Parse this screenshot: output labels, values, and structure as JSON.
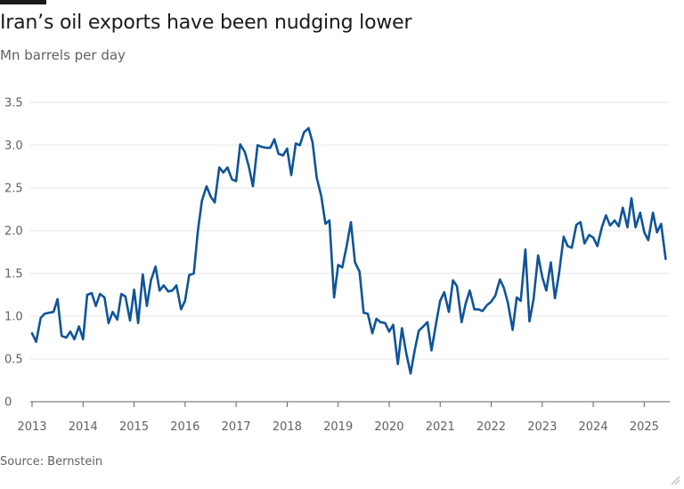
{
  "header": {
    "title": "Iran’s oil exports have been nudging lower",
    "subtitle": "Mn barrels per day"
  },
  "footer": {
    "source": "Source: Bernstein"
  },
  "colors": {
    "line": "#0f5499",
    "grid": "#e6e6e6",
    "axis": "#66605c",
    "text": "#66605c"
  },
  "chart_data": {
    "type": "line",
    "title": "Iran’s oil exports have been nudging lower",
    "subtitle": "Mn barrels per day",
    "xlabel": "",
    "ylabel": "",
    "xlim": [
      2013,
      2025.5
    ],
    "ylim": [
      0,
      3.5
    ],
    "yticks": [
      "0",
      "0.5",
      "1.0",
      "1.5",
      "2.0",
      "2.5",
      "3.0",
      "3.5"
    ],
    "xticks": [
      "2013",
      "2014",
      "2015",
      "2016",
      "2017",
      "2018",
      "2019",
      "2020",
      "2021",
      "2022",
      "2023",
      "2024",
      "2025"
    ],
    "grid": true,
    "series": [
      {
        "points": [
          [
            2013.0,
            0.8
          ],
          [
            2013.08,
            0.7
          ],
          [
            2013.17,
            0.98
          ],
          [
            2013.25,
            1.03
          ],
          [
            2013.33,
            1.04
          ],
          [
            2013.42,
            1.05
          ],
          [
            2013.5,
            1.2
          ],
          [
            2013.58,
            0.77
          ],
          [
            2013.67,
            0.75
          ],
          [
            2013.75,
            0.82
          ],
          [
            2013.83,
            0.73
          ],
          [
            2013.92,
            0.88
          ],
          [
            2014.0,
            0.73
          ],
          [
            2014.08,
            1.25
          ],
          [
            2014.17,
            1.27
          ],
          [
            2014.25,
            1.12
          ],
          [
            2014.33,
            1.26
          ],
          [
            2014.42,
            1.22
          ],
          [
            2014.5,
            0.92
          ],
          [
            2014.58,
            1.05
          ],
          [
            2014.67,
            0.96
          ],
          [
            2014.75,
            1.26
          ],
          [
            2014.83,
            1.23
          ],
          [
            2014.92,
            0.95
          ],
          [
            2015.0,
            1.31
          ],
          [
            2015.08,
            0.92
          ],
          [
            2015.17,
            1.49
          ],
          [
            2015.25,
            1.12
          ],
          [
            2015.33,
            1.42
          ],
          [
            2015.42,
            1.58
          ],
          [
            2015.5,
            1.3
          ],
          [
            2015.58,
            1.36
          ],
          [
            2015.67,
            1.29
          ],
          [
            2015.75,
            1.3
          ],
          [
            2015.83,
            1.36
          ],
          [
            2015.92,
            1.08
          ],
          [
            2016.0,
            1.18
          ],
          [
            2016.08,
            1.48
          ],
          [
            2016.17,
            1.5
          ],
          [
            2016.25,
            2.0
          ],
          [
            2016.33,
            2.35
          ],
          [
            2016.42,
            2.52
          ],
          [
            2016.5,
            2.4
          ],
          [
            2016.58,
            2.33
          ],
          [
            2016.67,
            2.74
          ],
          [
            2016.75,
            2.68
          ],
          [
            2016.83,
            2.74
          ],
          [
            2016.92,
            2.6
          ],
          [
            2017.0,
            2.58
          ],
          [
            2017.08,
            3.01
          ],
          [
            2017.17,
            2.92
          ],
          [
            2017.25,
            2.75
          ],
          [
            2017.33,
            2.52
          ],
          [
            2017.42,
            3.0
          ],
          [
            2017.5,
            2.98
          ],
          [
            2017.58,
            2.97
          ],
          [
            2017.67,
            2.97
          ],
          [
            2017.75,
            3.07
          ],
          [
            2017.83,
            2.9
          ],
          [
            2017.92,
            2.88
          ],
          [
            2018.0,
            2.96
          ],
          [
            2018.08,
            2.65
          ],
          [
            2018.17,
            3.02
          ],
          [
            2018.25,
            3.0
          ],
          [
            2018.33,
            3.15
          ],
          [
            2018.42,
            3.2
          ],
          [
            2018.5,
            3.03
          ],
          [
            2018.58,
            2.62
          ],
          [
            2018.67,
            2.4
          ],
          [
            2018.75,
            2.08
          ],
          [
            2018.83,
            2.12
          ],
          [
            2018.92,
            1.22
          ],
          [
            2019.0,
            1.6
          ],
          [
            2019.08,
            1.57
          ],
          [
            2019.17,
            1.83
          ],
          [
            2019.25,
            2.1
          ],
          [
            2019.33,
            1.63
          ],
          [
            2019.42,
            1.52
          ],
          [
            2019.5,
            1.04
          ],
          [
            2019.58,
            1.03
          ],
          [
            2019.67,
            0.8
          ],
          [
            2019.75,
            0.97
          ],
          [
            2019.83,
            0.93
          ],
          [
            2019.92,
            0.92
          ],
          [
            2020.0,
            0.82
          ],
          [
            2020.08,
            0.9
          ],
          [
            2020.17,
            0.44
          ],
          [
            2020.25,
            0.86
          ],
          [
            2020.33,
            0.58
          ],
          [
            2020.42,
            0.33
          ],
          [
            2020.5,
            0.6
          ],
          [
            2020.58,
            0.83
          ],
          [
            2020.67,
            0.88
          ],
          [
            2020.75,
            0.93
          ],
          [
            2020.83,
            0.6
          ],
          [
            2020.92,
            0.92
          ],
          [
            2021.0,
            1.18
          ],
          [
            2021.08,
            1.28
          ],
          [
            2021.17,
            1.05
          ],
          [
            2021.25,
            1.42
          ],
          [
            2021.33,
            1.35
          ],
          [
            2021.42,
            0.93
          ],
          [
            2021.5,
            1.15
          ],
          [
            2021.58,
            1.3
          ],
          [
            2021.67,
            1.08
          ],
          [
            2021.75,
            1.08
          ],
          [
            2021.83,
            1.06
          ],
          [
            2021.92,
            1.13
          ],
          [
            2022.0,
            1.17
          ],
          [
            2022.08,
            1.24
          ],
          [
            2022.17,
            1.43
          ],
          [
            2022.25,
            1.33
          ],
          [
            2022.33,
            1.15
          ],
          [
            2022.42,
            0.84
          ],
          [
            2022.5,
            1.22
          ],
          [
            2022.58,
            1.18
          ],
          [
            2022.67,
            1.78
          ],
          [
            2022.75,
            0.94
          ],
          [
            2022.83,
            1.2
          ],
          [
            2022.92,
            1.71
          ],
          [
            2023.0,
            1.46
          ],
          [
            2023.08,
            1.3
          ],
          [
            2023.17,
            1.63
          ],
          [
            2023.25,
            1.21
          ],
          [
            2023.33,
            1.5
          ],
          [
            2023.42,
            1.93
          ],
          [
            2023.5,
            1.82
          ],
          [
            2023.58,
            1.8
          ],
          [
            2023.67,
            2.07
          ],
          [
            2023.75,
            2.1
          ],
          [
            2023.83,
            1.85
          ],
          [
            2023.92,
            1.95
          ],
          [
            2024.0,
            1.92
          ],
          [
            2024.08,
            1.82
          ],
          [
            2024.17,
            2.04
          ],
          [
            2024.25,
            2.18
          ],
          [
            2024.33,
            2.06
          ],
          [
            2024.42,
            2.12
          ],
          [
            2024.5,
            2.05
          ],
          [
            2024.58,
            2.27
          ],
          [
            2024.67,
            2.04
          ],
          [
            2024.75,
            2.38
          ],
          [
            2024.83,
            2.04
          ],
          [
            2024.92,
            2.21
          ],
          [
            2025.0,
            1.98
          ],
          [
            2025.08,
            1.89
          ],
          [
            2025.17,
            2.21
          ],
          [
            2025.25,
            1.98
          ],
          [
            2025.33,
            2.08
          ],
          [
            2025.42,
            1.67
          ]
        ]
      }
    ]
  }
}
